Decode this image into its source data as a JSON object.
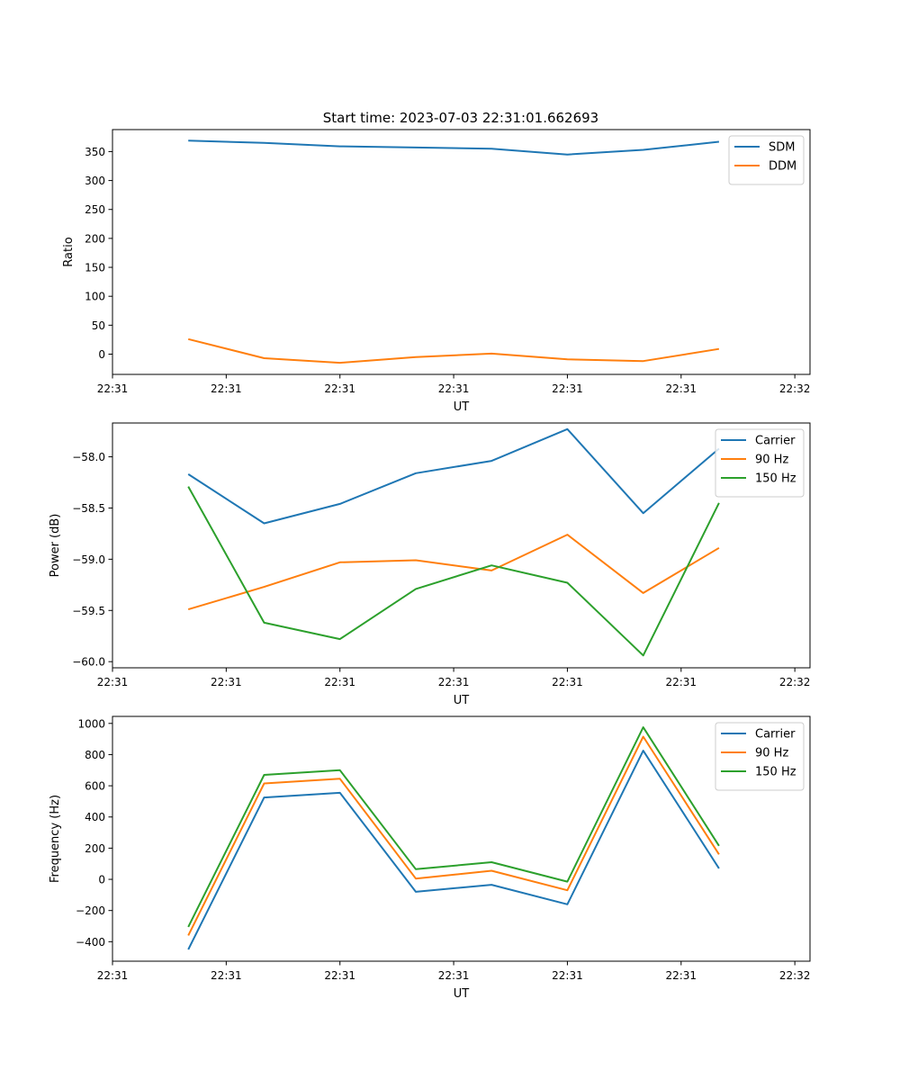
{
  "title": "Start time: 2023-07-03 22:31:01.662693",
  "colors": {
    "blue": "#1f77b4",
    "orange": "#ff7f0e",
    "green": "#2ca02c"
  },
  "chart_data": [
    {
      "type": "line",
      "xlabel": "UT",
      "ylabel": "Ratio",
      "x": [
        1,
        2,
        3,
        4,
        5,
        6,
        7,
        8
      ],
      "xlim": [
        0,
        9.2
      ],
      "x_ticks": [
        0,
        1.5,
        3,
        4.5,
        6,
        7.5,
        9
      ],
      "x_tick_labels": [
        "22:31",
        "22:31",
        "22:31",
        "22:31",
        "22:31",
        "22:31",
        "22:32"
      ],
      "ylim": [
        -35,
        388
      ],
      "y_ticks": [
        0,
        50,
        100,
        150,
        200,
        250,
        300,
        350
      ],
      "y_tick_labels": [
        "0",
        "50",
        "100",
        "150",
        "200",
        "250",
        "300",
        "350"
      ],
      "legend_position": "top-right",
      "series": [
        {
          "name": "SDM",
          "color": "#1f77b4",
          "values": [
            369,
            365,
            359,
            357,
            355,
            345,
            353,
            367
          ]
        },
        {
          "name": "DDM",
          "color": "#ff7f0e",
          "values": [
            26,
            -7,
            -15,
            -5,
            1,
            -9,
            -12,
            9
          ]
        }
      ]
    },
    {
      "type": "line",
      "xlabel": "UT",
      "ylabel": "Power (dB)",
      "x": [
        1,
        2,
        3,
        4,
        5,
        6,
        7,
        8
      ],
      "xlim": [
        0,
        9.2
      ],
      "x_ticks": [
        0,
        1.5,
        3,
        4.5,
        6,
        7.5,
        9
      ],
      "x_tick_labels": [
        "22:31",
        "22:31",
        "22:31",
        "22:31",
        "22:31",
        "22:31",
        "22:32"
      ],
      "ylim": [
        -60.06,
        -57.67
      ],
      "y_ticks": [
        -60.0,
        -59.5,
        -59.0,
        -58.5,
        -58.0
      ],
      "y_tick_labels": [
        "−60.0",
        "−59.5",
        "−59.0",
        "−58.5",
        "−58.0"
      ],
      "legend_position": "top-right",
      "series": [
        {
          "name": "Carrier",
          "color": "#1f77b4",
          "values": [
            -58.17,
            -58.65,
            -58.46,
            -58.16,
            -58.04,
            -57.73,
            -58.55,
            -57.92
          ]
        },
        {
          "name": "90 Hz",
          "color": "#ff7f0e",
          "values": [
            -59.49,
            -59.27,
            -59.03,
            -59.01,
            -59.11,
            -58.76,
            -59.33,
            -58.89
          ]
        },
        {
          "name": "150 Hz",
          "color": "#2ca02c",
          "values": [
            -58.29,
            -59.62,
            -59.78,
            -59.29,
            -59.06,
            -59.23,
            -59.94,
            -58.45
          ]
        }
      ]
    },
    {
      "type": "line",
      "xlabel": "UT",
      "ylabel": "Frequency (Hz)",
      "x": [
        1,
        2,
        3,
        4,
        5,
        6,
        7,
        8
      ],
      "xlim": [
        0,
        9.2
      ],
      "x_ticks": [
        0,
        1.5,
        3,
        4.5,
        6,
        7.5,
        9
      ],
      "x_tick_labels": [
        "22:31",
        "22:31",
        "22:31",
        "22:31",
        "22:31",
        "22:31",
        "22:32"
      ],
      "ylim": [
        -525,
        1045
      ],
      "y_ticks": [
        -400,
        -200,
        0,
        200,
        400,
        600,
        800,
        1000
      ],
      "y_tick_labels": [
        "−400",
        "−200",
        "0",
        "200",
        "400",
        "600",
        "800",
        "1000"
      ],
      "legend_position": "top-right",
      "series": [
        {
          "name": "Carrier",
          "color": "#1f77b4",
          "values": [
            -450,
            525,
            555,
            -80,
            -35,
            -160,
            825,
            70
          ]
        },
        {
          "name": "90 Hz",
          "color": "#ff7f0e",
          "values": [
            -360,
            615,
            645,
            5,
            55,
            -70,
            915,
            160
          ]
        },
        {
          "name": "150 Hz",
          "color": "#2ca02c",
          "values": [
            -305,
            670,
            700,
            65,
            110,
            -15,
            975,
            215
          ]
        }
      ]
    }
  ]
}
